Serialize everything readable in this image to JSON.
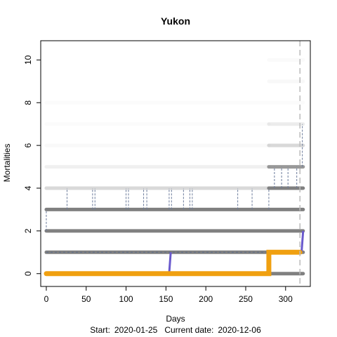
{
  "chart_data": {
    "type": "line",
    "title": "Yukon",
    "xlabel": "Days",
    "ylabel": "Mortalities",
    "xlim": [
      -7,
      331
    ],
    "ylim": [
      -0.6,
      10.9
    ],
    "x_ticks": [
      0,
      50,
      100,
      150,
      200,
      250,
      300
    ],
    "y_ticks": [
      0,
      2,
      4,
      6,
      8,
      10
    ],
    "footer": {
      "start_label": "Start:",
      "start_date": "2020-01-25",
      "current_label": "Current date:",
      "current_date": "2020-12-06"
    },
    "current_day_marker": 318,
    "band_levels": [
      {
        "y": 0,
        "x_from": 0,
        "x_to": 322,
        "intensity": 1.0
      },
      {
        "y": 1,
        "x_from": 0,
        "x_to": 322,
        "intensity": 1.0
      },
      {
        "y": 2,
        "x_from": 0,
        "x_to": 322,
        "intensity": 1.0
      },
      {
        "y": 3,
        "x_from": 0,
        "x_to": 322,
        "intensity": 1.0
      },
      {
        "y": 4,
        "x_from": 0,
        "x_to": 279,
        "intensity": 0.3
      },
      {
        "y": 4,
        "x_from": 279,
        "x_to": 322,
        "intensity": 1.0
      },
      {
        "y": 5,
        "x_from": 0,
        "x_to": 279,
        "intensity": 0.12
      },
      {
        "y": 5,
        "x_from": 279,
        "x_to": 322,
        "intensity": 0.8
      },
      {
        "y": 6,
        "x_from": 0,
        "x_to": 279,
        "intensity": 0.05
      },
      {
        "y": 6,
        "x_from": 279,
        "x_to": 322,
        "intensity": 0.3
      },
      {
        "y": 7,
        "x_from": 0,
        "x_to": 279,
        "intensity": 0.03
      },
      {
        "y": 7,
        "x_from": 279,
        "x_to": 322,
        "intensity": 0.15
      },
      {
        "y": 8,
        "x_from": 0,
        "x_to": 322,
        "intensity": 0.03
      },
      {
        "y": 9,
        "x_from": 279,
        "x_to": 322,
        "intensity": 0.06
      },
      {
        "y": 10,
        "x_from": 279,
        "x_to": 322,
        "intensity": 0.04
      }
    ],
    "dashed_jumps": [
      {
        "x": 0,
        "from": 2,
        "to": 3
      },
      {
        "x": 26,
        "from": 3,
        "to": 4
      },
      {
        "x": 58,
        "from": 3,
        "to": 4
      },
      {
        "x": 61,
        "from": 3,
        "to": 4
      },
      {
        "x": 100,
        "from": 3,
        "to": 4
      },
      {
        "x": 103,
        "from": 3,
        "to": 4
      },
      {
        "x": 122,
        "from": 3,
        "to": 4
      },
      {
        "x": 126,
        "from": 3,
        "to": 4
      },
      {
        "x": 154,
        "from": 3,
        "to": 4
      },
      {
        "x": 157,
        "from": 3,
        "to": 4
      },
      {
        "x": 172,
        "from": 3,
        "to": 4
      },
      {
        "x": 180,
        "from": 3,
        "to": 4
      },
      {
        "x": 183,
        "from": 3,
        "to": 4
      },
      {
        "x": 240,
        "from": 3,
        "to": 4
      },
      {
        "x": 258,
        "from": 3,
        "to": 4
      },
      {
        "x": 279,
        "from": 3,
        "to": 4
      },
      {
        "x": 286,
        "from": 4,
        "to": 5
      },
      {
        "x": 295,
        "from": 4,
        "to": 5
      },
      {
        "x": 303,
        "from": 4,
        "to": 5
      },
      {
        "x": 314,
        "from": 4,
        "to": 5
      },
      {
        "x": 321,
        "from": 5,
        "to": 7
      }
    ],
    "dashed_baseline": {
      "y": 1,
      "x_from": 0,
      "x_to": 322
    },
    "series": [
      {
        "name": "",
        "color": "#f0a010",
        "x": [
          0,
          279,
          279,
          318
        ],
        "y": [
          0,
          0,
          1,
          1
        ]
      }
    ],
    "purple_segments": [
      {
        "color": "#6a5acd",
        "x": [
          154,
          156
        ],
        "y": [
          0,
          1
        ]
      },
      {
        "color": "#6a5acd",
        "x": [
          277,
          279
        ],
        "y": [
          0,
          1
        ]
      },
      {
        "color": "#6a5acd",
        "x": [
          320,
          322
        ],
        "y": [
          1,
          2
        ]
      }
    ]
  }
}
